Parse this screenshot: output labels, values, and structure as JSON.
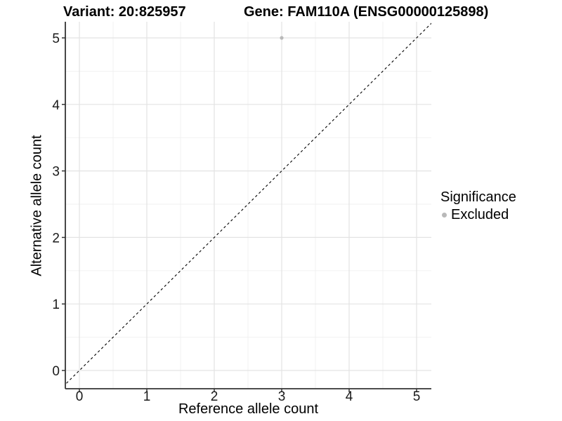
{
  "header": {
    "variant_title": "Variant: 20:825957",
    "gene_title": "Gene: FAM110A (ENSG00000125898)"
  },
  "chart_data": {
    "type": "scatter",
    "title": "Variant: 20:825957   Gene: FAM110A (ENSG00000125898)",
    "xlabel": "Reference allele count",
    "ylabel": "Alternative allele count",
    "xlim": [
      -0.25,
      5.25
    ],
    "ylim": [
      -0.25,
      5.25
    ],
    "x_ticks": [
      0,
      1,
      2,
      3,
      4,
      5
    ],
    "y_ticks": [
      0,
      1,
      2,
      3,
      4,
      5
    ],
    "minor_gridlines_step": 0.5,
    "grid": true,
    "series": [
      {
        "name": "Excluded",
        "points": [
          {
            "x": 3,
            "y": 5
          }
        ]
      }
    ],
    "reference_line": {
      "equation": "y = x",
      "style": "dashed",
      "color": "#000000"
    },
    "legend": {
      "title": "Significance",
      "position": "right",
      "entries": [
        {
          "label": "Excluded",
          "color": "#b9b9b9"
        }
      ]
    },
    "colors": {
      "excluded_point": "#b9b9b9",
      "grid_major": "#e3e3e3",
      "grid_minor": "#f0f0f0",
      "axis_line": "#333333",
      "tick_label": "#1a1a1a"
    }
  }
}
